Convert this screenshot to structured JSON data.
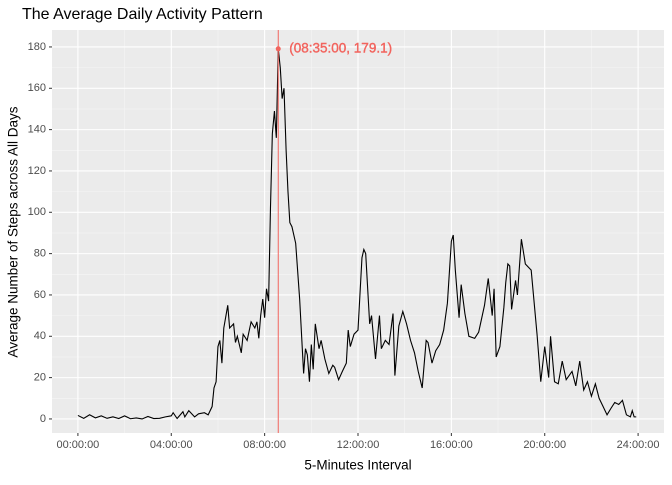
{
  "chart_data": {
    "type": "line",
    "title": "The Average Daily Activity Pattern",
    "x_label": "5-Minutes Interval",
    "y_label": "Average Number of Steps across All Days",
    "x": [
      0,
      0.25,
      0.5,
      0.75,
      1,
      1.25,
      1.5,
      1.75,
      2,
      2.25,
      2.5,
      2.75,
      3,
      3.25,
      3.5,
      3.75,
      4,
      4.08,
      4.25,
      4.5,
      4.58,
      4.75,
      5,
      5.17,
      5.42,
      5.58,
      5.75,
      5.83,
      5.92,
      6.0,
      6.08,
      6.17,
      6.25,
      6.42,
      6.5,
      6.67,
      6.75,
      6.83,
      7.0,
      7.08,
      7.25,
      7.42,
      7.58,
      7.67,
      7.75,
      7.83,
      7.92,
      8.0,
      8.08,
      8.17,
      8.25,
      8.33,
      8.42,
      8.5,
      8.5833,
      8.67,
      8.75,
      8.83,
      8.92,
      9.0,
      9.08,
      9.17,
      9.33,
      9.5,
      9.67,
      9.75,
      9.83,
      9.92,
      10.0,
      10.08,
      10.17,
      10.33,
      10.42,
      10.58,
      10.75,
      10.92,
      11.0,
      11.17,
      11.33,
      11.5,
      11.58,
      11.67,
      11.83,
      12.0,
      12.17,
      12.25,
      12.33,
      12.5,
      12.58,
      12.75,
      12.92,
      13.0,
      13.17,
      13.33,
      13.5,
      13.58,
      13.75,
      13.92,
      14.08,
      14.25,
      14.42,
      14.58,
      14.75,
      14.92,
      15.0,
      15.17,
      15.33,
      15.5,
      15.67,
      15.83,
      16.0,
      16.08,
      16.17,
      16.33,
      16.42,
      16.58,
      16.75,
      17.0,
      17.17,
      17.42,
      17.58,
      17.75,
      17.83,
      17.92,
      18.08,
      18.25,
      18.33,
      18.42,
      18.5,
      18.58,
      18.75,
      18.83,
      19.0,
      19.17,
      19.42,
      19.67,
      19.83,
      20.0,
      20.08,
      20.17,
      20.25,
      20.42,
      20.58,
      20.75,
      20.92,
      21.17,
      21.33,
      21.5,
      21.67,
      21.83,
      22.0,
      22.17,
      22.33,
      22.5,
      22.67,
      22.83,
      23.0,
      23.17,
      23.33,
      23.5,
      23.67,
      23.75,
      23.83,
      23.92
    ],
    "series": [
      {
        "color": "#000000",
        "values": [
          1.7,
          0.3,
          2,
          0.5,
          1.5,
          0.3,
          1,
          0.2,
          1.5,
          0.1,
          0.5,
          0,
          1.2,
          0.2,
          0.3,
          1,
          1.5,
          3,
          0.2,
          3.5,
          1,
          4,
          1,
          2.5,
          3,
          2,
          6,
          15,
          18,
          35,
          38,
          27,
          44,
          55,
          44,
          46,
          37,
          40,
          32,
          41,
          38,
          47,
          44,
          47,
          39,
          50,
          58,
          49,
          63,
          57,
          102,
          138,
          149,
          136,
          179.1,
          170,
          155,
          160,
          130,
          110,
          95,
          93,
          85,
          58,
          22,
          34,
          31,
          18,
          36,
          24,
          46,
          34,
          38,
          29,
          22,
          26,
          25,
          19,
          23,
          27,
          43,
          35,
          41,
          43,
          78,
          82,
          80,
          46,
          50,
          29,
          50,
          34,
          38,
          36,
          51,
          21,
          45,
          52,
          46,
          38,
          32,
          23,
          15,
          38,
          37,
          27,
          33,
          36,
          43,
          56,
          86,
          89,
          72,
          49,
          65,
          51,
          40,
          39,
          42,
          55,
          68,
          50,
          63,
          30,
          35,
          54,
          66,
          75,
          74,
          53,
          67,
          60,
          87,
          75,
          72,
          41,
          18,
          35,
          28,
          20,
          40,
          18,
          17,
          28,
          19,
          23,
          16,
          28,
          14,
          18,
          11,
          17,
          10,
          6,
          2,
          5,
          8,
          7,
          9,
          2,
          1,
          4,
          1,
          1
        ]
      }
    ],
    "annotation": {
      "x": 8.5833,
      "y": 179.1,
      "label": "(08:35:00, 179.1)",
      "color": "#f2645e"
    },
    "xlim": [
      -1.11,
      25.11
    ],
    "xticks": [
      {
        "value": 0,
        "label": "00:00:00"
      },
      {
        "value": 4,
        "label": "04:00:00"
      },
      {
        "value": 8,
        "label": "08:00:00"
      },
      {
        "value": 12,
        "label": "12:00:00"
      },
      {
        "value": 16,
        "label": "16:00:00"
      },
      {
        "value": 20,
        "label": "20:00:00"
      },
      {
        "value": 24,
        "label": "24:00:00"
      }
    ],
    "ylim": [
      -6.8,
      188.2
    ],
    "yticks": [
      0,
      20,
      40,
      60,
      80,
      100,
      120,
      140,
      160,
      180
    ],
    "grid": true
  }
}
